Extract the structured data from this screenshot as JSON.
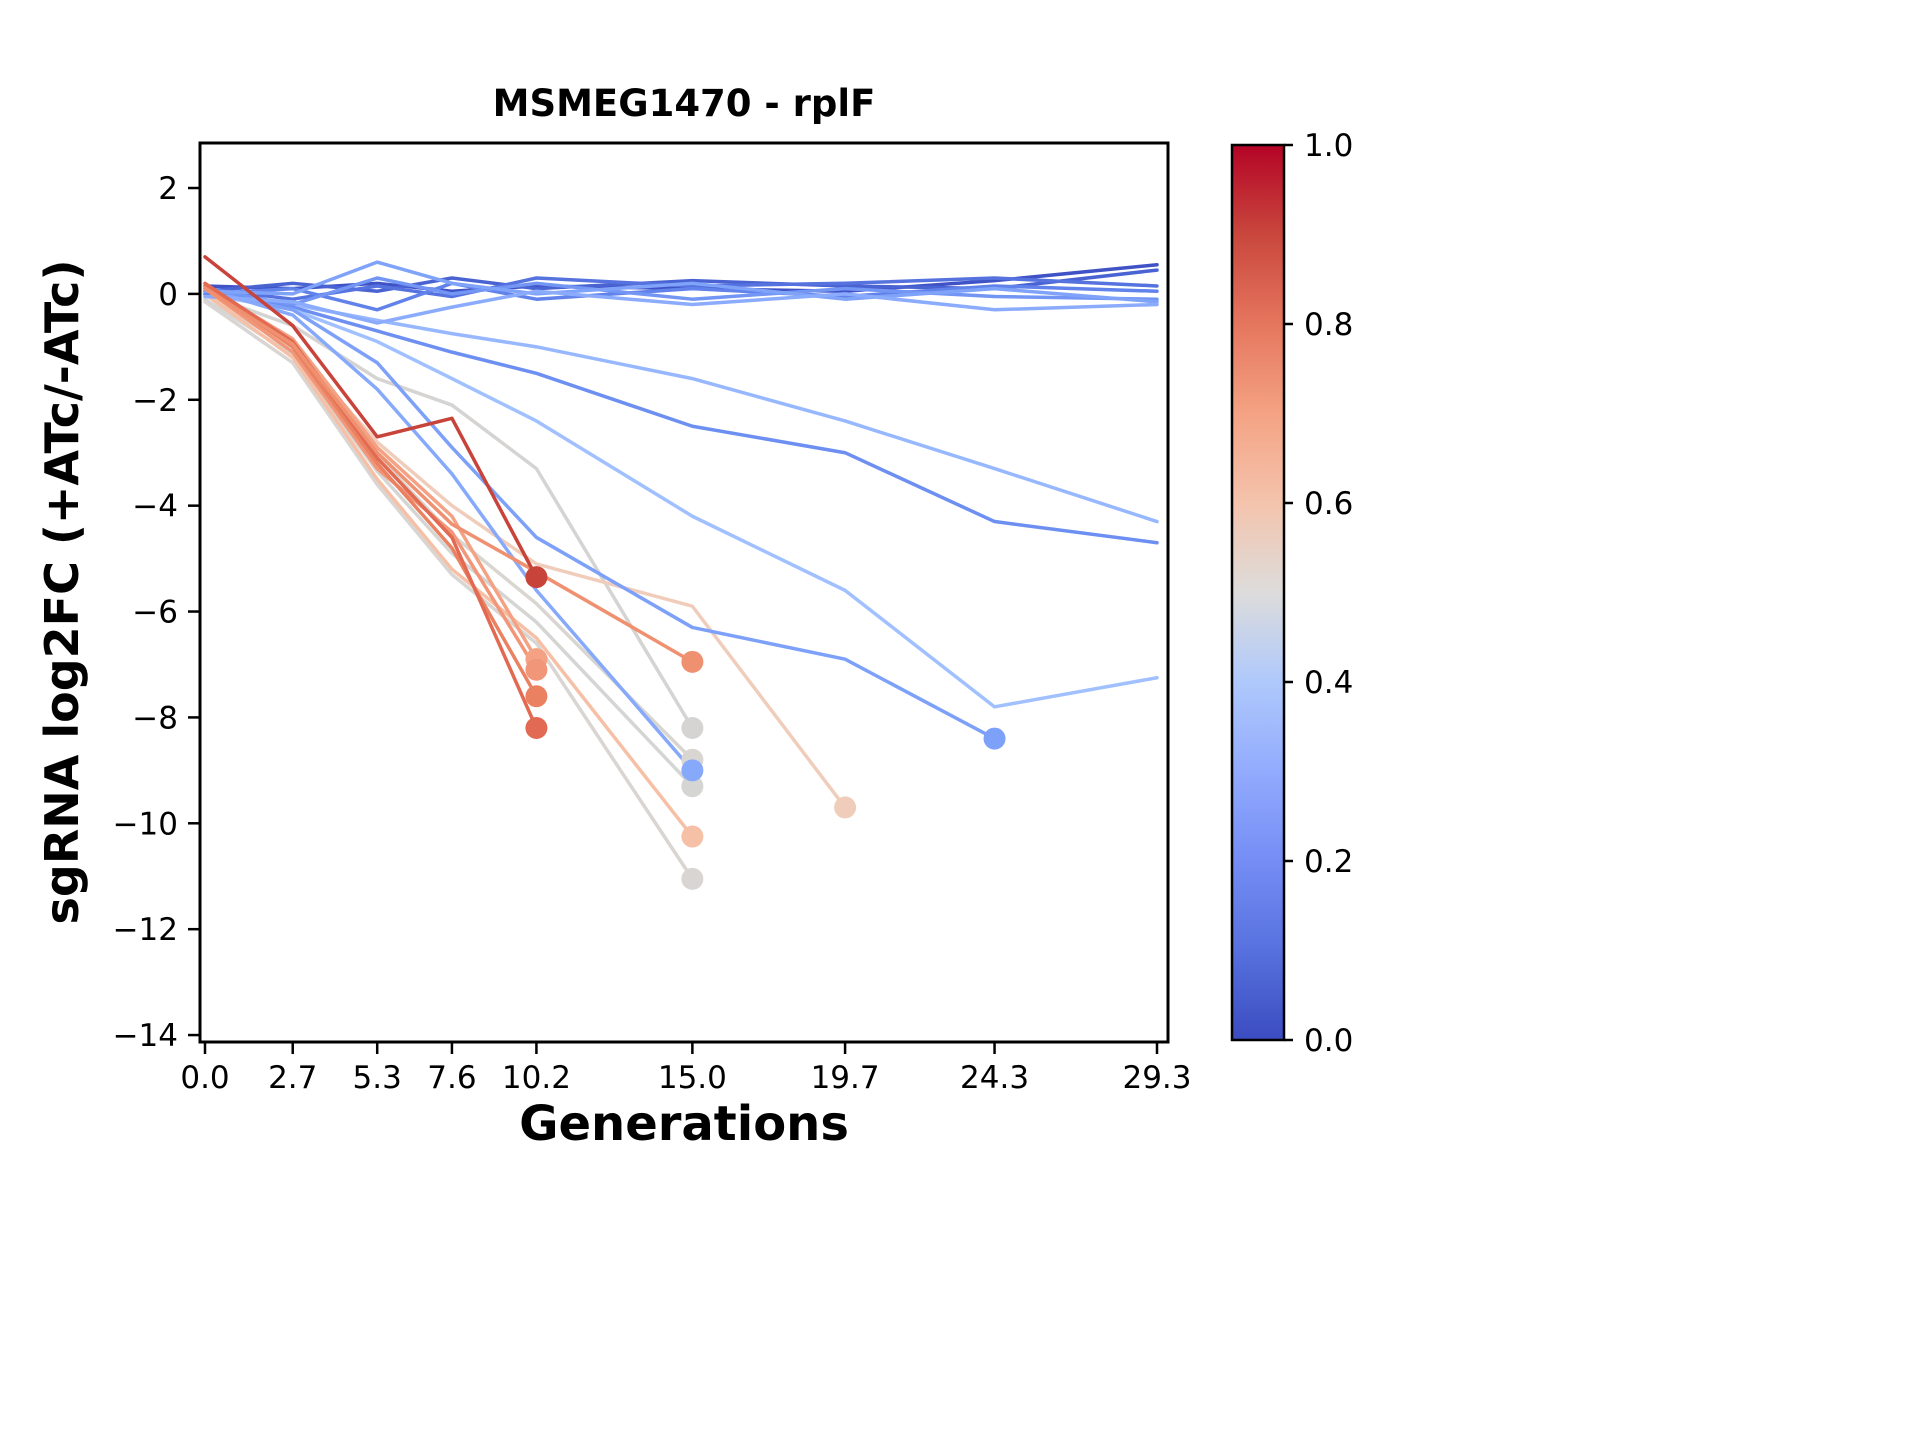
{
  "title": "MSMEG1470 - rplF",
  "xlabel": "Generations",
  "ylabel": "sgRNA log2FC (+ATc/-ATc)",
  "chart_data": {
    "type": "line",
    "title": "MSMEG1470 - rplF",
    "xlabel": "Generations",
    "ylabel": "sgRNA log2FC (+ATc/-ATc)",
    "xlim": [
      -0.15,
      30.0
    ],
    "ylim": [
      -14.15,
      2.85
    ],
    "grid": false,
    "legend": "none (colorbar encodes series value 0.0 blue to 1.0 red)",
    "x_ticks": [
      0.0,
      2.7,
      5.3,
      7.6,
      10.2,
      15.0,
      19.7,
      24.3,
      29.3
    ],
    "x_tick_labels": [
      "0.0",
      "2.7",
      "5.3",
      "7.6",
      "10.2",
      "15.0",
      "19.7",
      "24.3",
      "29.3"
    ],
    "y_ticks": [
      2,
      0,
      -2,
      -4,
      -6,
      -8,
      -10,
      -12,
      -14
    ],
    "y_tick_labels": [
      "2",
      "0",
      "−2",
      "−4",
      "−6",
      "−8",
      "−10",
      "−12",
      "−14"
    ],
    "series": [
      {
        "value": 0.5,
        "color": "#d6d4d2",
        "end_marker": true,
        "x": [
          0,
          2.7,
          5.3,
          7.6,
          10.2,
          15.0
        ],
        "y": [
          0.0,
          -0.6,
          -1.6,
          -2.1,
          -3.3,
          -8.2
        ]
      },
      {
        "value": 0.52,
        "color": "#d9d5d0",
        "end_marker": true,
        "x": [
          0,
          2.7,
          5.3,
          7.6,
          10.2,
          15.0
        ],
        "y": [
          0.0,
          -1.05,
          -3.05,
          -4.55,
          -5.85,
          -8.8
        ]
      },
      {
        "value": 0.49,
        "color": "#d5d5d4",
        "end_marker": true,
        "x": [
          0,
          2.7,
          5.3,
          7.6,
          10.2,
          15.0
        ],
        "y": [
          -0.1,
          -1.15,
          -3.35,
          -4.9,
          -6.2,
          -9.3
        ]
      },
      {
        "value": 0.51,
        "color": "#d8d5d2",
        "end_marker": true,
        "x": [
          0,
          2.7,
          5.3,
          7.6,
          10.2,
          15.0
        ],
        "y": [
          -0.15,
          -1.3,
          -3.6,
          -5.3,
          -6.6,
          -11.05
        ]
      },
      {
        "value": 0.58,
        "color": "#f0cdbb",
        "end_marker": true,
        "x": [
          0,
          2.7,
          5.3,
          7.6,
          10.2,
          15.0,
          19.7
        ],
        "y": [
          0.0,
          -1.0,
          -2.8,
          -4.0,
          -5.1,
          -5.9,
          -9.7
        ]
      },
      {
        "value": 0.64,
        "color": "#f6c0a7",
        "end_marker": true,
        "x": [
          0,
          2.7,
          5.3,
          7.6,
          10.2,
          15.0
        ],
        "y": [
          0.0,
          -1.2,
          -3.5,
          -5.2,
          -6.5,
          -10.25
        ]
      },
      {
        "value": 0.38,
        "color": "#97b8ff",
        "end_marker": false,
        "x": [
          0,
          2.7,
          5.3,
          7.6,
          10.2,
          15.0,
          19.7,
          24.3,
          29.3
        ],
        "y": [
          0.0,
          -0.2,
          -0.5,
          -0.75,
          -1.0,
          -1.6,
          -2.4,
          -3.3,
          -4.3
        ]
      },
      {
        "value": 0.22,
        "color": "#6c8ff1",
        "end_marker": false,
        "x": [
          0,
          2.7,
          5.3,
          7.6,
          10.2,
          15.0,
          19.7,
          24.3,
          29.3
        ],
        "y": [
          0.05,
          -0.25,
          -0.7,
          -1.1,
          -1.5,
          -2.5,
          -3.0,
          -4.3,
          -4.7
        ]
      },
      {
        "value": 0.4,
        "color": "#a1c0ff",
        "end_marker": false,
        "x": [
          0,
          2.7,
          5.3,
          7.6,
          10.2,
          15.0,
          19.7,
          24.3,
          29.3
        ],
        "y": [
          0.0,
          -0.3,
          -0.9,
          -1.6,
          -2.4,
          -4.2,
          -5.6,
          -7.8,
          -7.25
        ]
      },
      {
        "value": 0.28,
        "color": "#7da0f9",
        "end_marker": true,
        "x": [
          0,
          2.7,
          5.3,
          7.6,
          10.2,
          15.0,
          19.7,
          24.3
        ],
        "y": [
          0.05,
          -0.3,
          -1.3,
          -2.9,
          -4.6,
          -6.3,
          -6.9,
          -8.4
        ]
      },
      {
        "value": 0.33,
        "color": "#86a9fc",
        "end_marker": true,
        "x": [
          0,
          2.7,
          5.3,
          7.6,
          10.2,
          15.0
        ],
        "y": [
          0.1,
          -0.4,
          -1.8,
          -3.4,
          -5.6,
          -9.0
        ]
      },
      {
        "value": 0.03,
        "color": "#3f53c6",
        "end_marker": false,
        "x": [
          0,
          2.7,
          5.3,
          7.6,
          10.2,
          15.0,
          19.7,
          24.3,
          29.3
        ],
        "y": [
          0.15,
          0.1,
          0.2,
          0.05,
          0.15,
          0.1,
          0.05,
          0.25,
          0.55
        ]
      },
      {
        "value": 0.08,
        "color": "#4a63d3",
        "end_marker": false,
        "x": [
          0,
          2.7,
          5.3,
          7.6,
          10.2,
          15.0,
          19.7,
          24.3,
          29.3
        ],
        "y": [
          0.05,
          0.2,
          0.05,
          0.3,
          0.1,
          0.25,
          0.15,
          0.1,
          0.45
        ]
      },
      {
        "value": 0.13,
        "color": "#5572df",
        "end_marker": false,
        "x": [
          0,
          2.7,
          5.3,
          7.6,
          10.2,
          15.0,
          19.7,
          24.3,
          29.3
        ],
        "y": [
          0.1,
          -0.1,
          0.15,
          -0.05,
          0.3,
          0.15,
          0.2,
          0.3,
          0.15
        ]
      },
      {
        "value": 0.18,
        "color": "#6182ea",
        "end_marker": false,
        "x": [
          0,
          2.7,
          5.3,
          7.6,
          10.2,
          15.0,
          19.7,
          24.3,
          29.3
        ],
        "y": [
          0.0,
          0.1,
          -0.3,
          0.2,
          -0.1,
          0.1,
          -0.05,
          0.15,
          0.05
        ]
      },
      {
        "value": 0.25,
        "color": "#7396f5",
        "end_marker": false,
        "x": [
          0,
          2.7,
          5.3,
          7.6,
          10.2,
          15.0,
          19.7,
          24.3,
          29.3
        ],
        "y": [
          0.1,
          -0.2,
          0.3,
          0.0,
          0.2,
          -0.1,
          0.1,
          -0.05,
          -0.1
        ]
      },
      {
        "value": 0.3,
        "color": "#80a3fa",
        "end_marker": false,
        "x": [
          0,
          2.7,
          5.3,
          7.6,
          10.2,
          15.0,
          19.7,
          24.3,
          29.3
        ],
        "y": [
          0.05,
          0.0,
          0.6,
          0.2,
          0.0,
          0.2,
          -0.1,
          0.1,
          -0.15
        ]
      },
      {
        "value": 0.35,
        "color": "#8bacfd",
        "end_marker": false,
        "x": [
          0,
          2.7,
          5.3,
          7.6,
          10.2,
          15.0,
          19.7,
          24.3,
          29.3
        ],
        "y": [
          -0.05,
          -0.15,
          -0.55,
          -0.25,
          0.05,
          -0.2,
          0.0,
          -0.3,
          -0.2
        ]
      },
      {
        "value": 0.7,
        "color": "#f4a283",
        "end_marker": true,
        "x": [
          0,
          2.7,
          5.3,
          7.6,
          10.2
        ],
        "y": [
          0.15,
          -0.85,
          -2.9,
          -4.2,
          -6.9
        ]
      },
      {
        "value": 0.73,
        "color": "#f19678",
        "end_marker": true,
        "x": [
          0,
          2.7,
          5.3,
          7.6,
          10.2
        ],
        "y": [
          0.1,
          -1.1,
          -3.3,
          -4.5,
          -7.1
        ]
      },
      {
        "value": 0.78,
        "color": "#ea8160",
        "end_marker": true,
        "x": [
          0,
          2.7,
          5.3,
          7.6,
          10.2
        ],
        "y": [
          0.15,
          -1.0,
          -3.2,
          -4.8,
          -7.6
        ]
      },
      {
        "value": 0.82,
        "color": "#e26952",
        "end_marker": true,
        "x": [
          0,
          2.7,
          5.3,
          7.6,
          10.2
        ],
        "y": [
          0.2,
          -0.9,
          -3.1,
          -4.6,
          -8.2
        ]
      },
      {
        "value": 0.74,
        "color": "#ef9171",
        "end_marker": true,
        "x": [
          0,
          2.7,
          5.3,
          7.6,
          10.2,
          15.0
        ],
        "y": [
          0.1,
          -0.95,
          -3.0,
          -4.35,
          -5.25,
          -6.95
        ]
      },
      {
        "value": 0.92,
        "color": "#c8443a",
        "end_marker": true,
        "x": [
          0,
          2.7,
          5.3,
          7.6,
          10.2
        ],
        "y": [
          0.7,
          -0.6,
          -2.7,
          -2.35,
          -5.35
        ]
      }
    ],
    "colorbar": {
      "min": 0.0,
      "max": 1.0,
      "position": "right",
      "ticks": [
        {
          "t": 0.0,
          "label": "0.0"
        },
        {
          "t": 0.2,
          "label": "0.2"
        },
        {
          "t": 0.4,
          "label": "0.4"
        },
        {
          "t": 0.6,
          "label": "0.6"
        },
        {
          "t": 0.8,
          "label": "0.8"
        },
        {
          "t": 1.0,
          "label": "1.0"
        }
      ],
      "stops": [
        {
          "t": 0.0,
          "color": "#3b4cc0"
        },
        {
          "t": 0.1,
          "color": "#5771de"
        },
        {
          "t": 0.2,
          "color": "#758df5"
        },
        {
          "t": 0.3,
          "color": "#92abfd"
        },
        {
          "t": 0.4,
          "color": "#afc9fc"
        },
        {
          "t": 0.5,
          "color": "#dddcdb"
        },
        {
          "t": 0.6,
          "color": "#f4c4ad"
        },
        {
          "t": 0.7,
          "color": "#f4a283"
        },
        {
          "t": 0.8,
          "color": "#e5765e"
        },
        {
          "t": 0.9,
          "color": "#c9473d"
        },
        {
          "t": 1.0,
          "color": "#b40426"
        }
      ]
    }
  }
}
